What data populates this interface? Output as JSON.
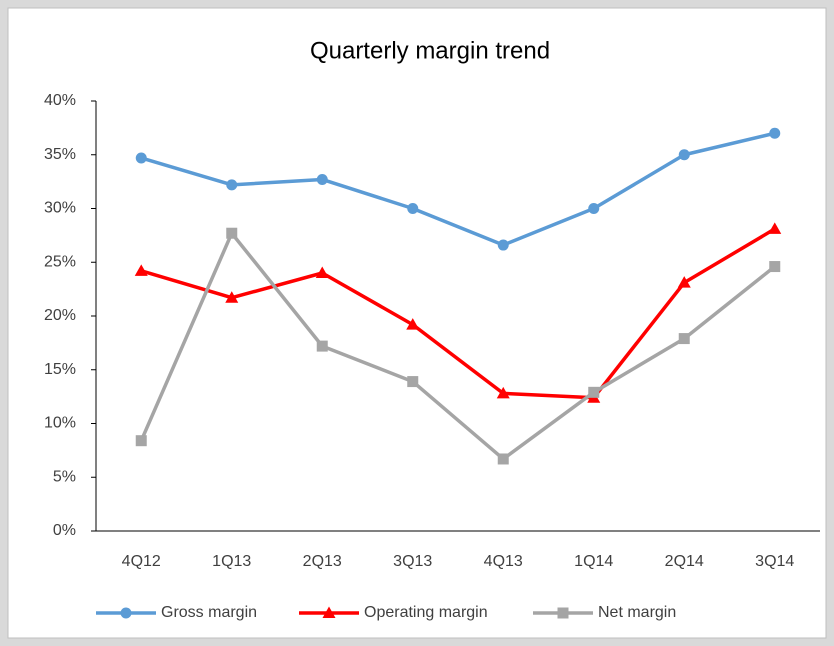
{
  "chart_data": {
    "type": "line",
    "title": "Quarterly margin trend",
    "categories": [
      "4Q12",
      "1Q13",
      "2Q13",
      "3Q13",
      "4Q13",
      "1Q14",
      "2Q14",
      "3Q14"
    ],
    "series": [
      {
        "name": "Gross margin",
        "color": "#5b9bd5",
        "marker": "circle",
        "values": [
          34.7,
          32.2,
          32.7,
          30.0,
          26.6,
          30.0,
          35.0,
          37.0
        ]
      },
      {
        "name": "Operating margin",
        "color": "#ff0000",
        "marker": "triangle",
        "values": [
          24.2,
          21.7,
          24.0,
          19.2,
          12.8,
          12.4,
          23.1,
          28.1
        ]
      },
      {
        "name": "Net margin",
        "color": "#a5a5a5",
        "marker": "square",
        "values": [
          8.4,
          27.7,
          17.2,
          13.9,
          6.7,
          12.9,
          17.9,
          24.6
        ]
      }
    ],
    "ylim": [
      0,
      40
    ],
    "yticks": [
      {
        "value": 0,
        "label": "0%"
      },
      {
        "value": 5,
        "label": "5%"
      },
      {
        "value": 10,
        "label": "10%"
      },
      {
        "value": 15,
        "label": "15%"
      },
      {
        "value": 20,
        "label": "20%"
      },
      {
        "value": 25,
        "label": "25%"
      },
      {
        "value": 30,
        "label": "30%"
      },
      {
        "value": 35,
        "label": "35%"
      },
      {
        "value": 40,
        "label": "40%"
      }
    ],
    "grid": false,
    "legend": "bottom"
  }
}
